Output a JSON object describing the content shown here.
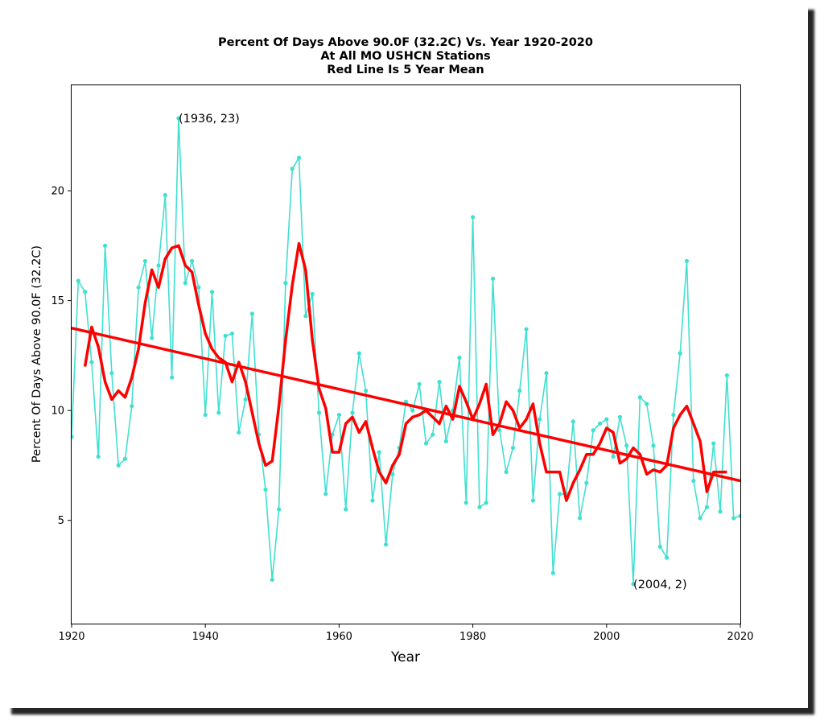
{
  "chart_data": {
    "type": "line",
    "title_lines": [
      "Percent Of Days Above 90.0F (32.2C) Vs. Year 1920-2020",
      "At All MO USHCN Stations",
      "Red Line Is 5 Year Mean"
    ],
    "xlabel": "Year",
    "ylabel": "Percent Of Days Above 90.0F (32.2C)",
    "xlim": [
      1920,
      2020
    ],
    "ylim": [
      0.3,
      24.8
    ],
    "xticks": [
      1920,
      1940,
      1960,
      1980,
      2000,
      2020
    ],
    "yticks": [
      5,
      10,
      15,
      20
    ],
    "grid": false,
    "series": [
      {
        "color": "#40e0d0",
        "marker": "dot",
        "x": [
          1920,
          1921,
          1922,
          1923,
          1924,
          1925,
          1926,
          1927,
          1928,
          1929,
          1930,
          1931,
          1932,
          1933,
          1934,
          1935,
          1936,
          1937,
          1938,
          1939,
          1940,
          1941,
          1942,
          1943,
          1944,
          1945,
          1946,
          1947,
          1948,
          1949,
          1950,
          1951,
          1952,
          1953,
          1954,
          1955,
          1956,
          1957,
          1958,
          1959,
          1960,
          1961,
          1962,
          1963,
          1964,
          1965,
          1966,
          1967,
          1968,
          1969,
          1970,
          1971,
          1972,
          1973,
          1974,
          1975,
          1976,
          1977,
          1978,
          1979,
          1980,
          1981,
          1982,
          1983,
          1984,
          1985,
          1986,
          1987,
          1988,
          1989,
          1990,
          1991,
          1992,
          1993,
          1994,
          1995,
          1996,
          1997,
          1998,
          1999,
          2000,
          2001,
          2002,
          2003,
          2004,
          2005,
          2006,
          2007,
          2008,
          2009,
          2010,
          2011,
          2012,
          2013,
          2014,
          2015,
          2016,
          2017,
          2018,
          2019,
          2020
        ],
        "values": [
          8.8,
          15.9,
          15.4,
          12.2,
          7.9,
          17.5,
          11.7,
          7.5,
          7.8,
          10.2,
          15.6,
          16.8,
          13.3,
          16.6,
          19.8,
          11.5,
          23.3,
          15.8,
          16.8,
          15.6,
          9.8,
          15.4,
          9.9,
          13.4,
          13.5,
          9.0,
          10.5,
          14.4,
          8.9,
          6.4,
          2.3,
          5.5,
          15.8,
          21.0,
          21.5,
          14.3,
          15.3,
          9.9,
          6.2,
          8.9,
          9.8,
          5.5,
          9.9,
          12.6,
          10.9,
          5.9,
          8.1,
          3.9,
          7.1,
          8.3,
          10.4,
          10.0,
          11.2,
          8.5,
          8.9,
          11.3,
          8.6,
          10.0,
          12.4,
          5.8,
          18.8,
          5.6,
          5.8,
          16.0,
          9.1,
          7.2,
          8.3,
          10.9,
          13.7,
          5.9,
          9.6,
          11.7,
          2.6,
          6.2,
          6.2,
          9.5,
          5.1,
          6.7,
          9.1,
          9.4,
          9.6,
          7.9,
          9.7,
          8.4,
          2.1,
          10.6,
          10.3,
          8.4,
          3.8,
          3.3,
          9.8,
          12.6,
          16.8,
          6.8,
          5.1,
          5.6,
          8.5,
          5.4,
          11.6,
          5.1,
          5.2
        ]
      },
      {
        "color": "#ff0000",
        "x": [
          1922,
          1923,
          1924,
          1925,
          1926,
          1927,
          1928,
          1929,
          1930,
          1931,
          1932,
          1933,
          1934,
          1935,
          1936,
          1937,
          1938,
          1939,
          1940,
          1941,
          1942,
          1943,
          1944,
          1945,
          1946,
          1947,
          1948,
          1949,
          1950,
          1951,
          1952,
          1953,
          1954,
          1955,
          1956,
          1957,
          1958,
          1959,
          1960,
          1961,
          1962,
          1963,
          1964,
          1965,
          1966,
          1967,
          1968,
          1969,
          1970,
          1971,
          1972,
          1973,
          1974,
          1975,
          1976,
          1977,
          1978,
          1979,
          1980,
          1981,
          1982,
          1983,
          1984,
          1985,
          1986,
          1987,
          1988,
          1989,
          1990,
          1991,
          1992,
          1993,
          1994,
          1995,
          1996,
          1997,
          1998,
          1999,
          2000,
          2001,
          2002,
          2003,
          2004,
          2005,
          2006,
          2007,
          2008,
          2009,
          2010,
          2011,
          2012,
          2013,
          2014,
          2015,
          2016,
          2017,
          2018
        ],
        "values": [
          12.0,
          13.8,
          12.9,
          11.3,
          10.5,
          10.9,
          10.6,
          11.5,
          12.8,
          14.9,
          16.4,
          15.6,
          16.9,
          17.4,
          17.5,
          16.6,
          16.3,
          14.8,
          13.5,
          12.8,
          12.4,
          12.2,
          11.3,
          12.2,
          11.3,
          9.9,
          8.5,
          7.5,
          7.7,
          10.2,
          13.2,
          15.7,
          17.6,
          16.4,
          13.2,
          11.0,
          10.1,
          8.1,
          8.1,
          9.4,
          9.7,
          9.0,
          9.5,
          8.3,
          7.2,
          6.7,
          7.5,
          8.0,
          9.4,
          9.7,
          9.8,
          10.0,
          9.7,
          9.4,
          10.2,
          9.6,
          11.1,
          10.4,
          9.6,
          10.3,
          11.2,
          8.9,
          9.4,
          10.4,
          10.0,
          9.2,
          9.6,
          10.3,
          8.5,
          7.2,
          7.2,
          7.2,
          5.9,
          6.7,
          7.3,
          8.0,
          8.0,
          8.5,
          9.2,
          9.0,
          7.6,
          7.8,
          8.3,
          8.0,
          7.1,
          7.3,
          7.2,
          7.5,
          9.2,
          9.8,
          10.2,
          9.4,
          8.6,
          6.3,
          7.2,
          7.2,
          7.2
        ]
      },
      {
        "color": "#ff0000",
        "type": "trend",
        "x": [
          1920,
          2020
        ],
        "values": [
          13.75,
          6.8
        ]
      }
    ],
    "annotations": [
      {
        "text": "(1936, 23)",
        "x": 1936,
        "y": 23.3
      },
      {
        "text": "(2004, 2)",
        "x": 2004,
        "y": 2.1
      }
    ]
  }
}
